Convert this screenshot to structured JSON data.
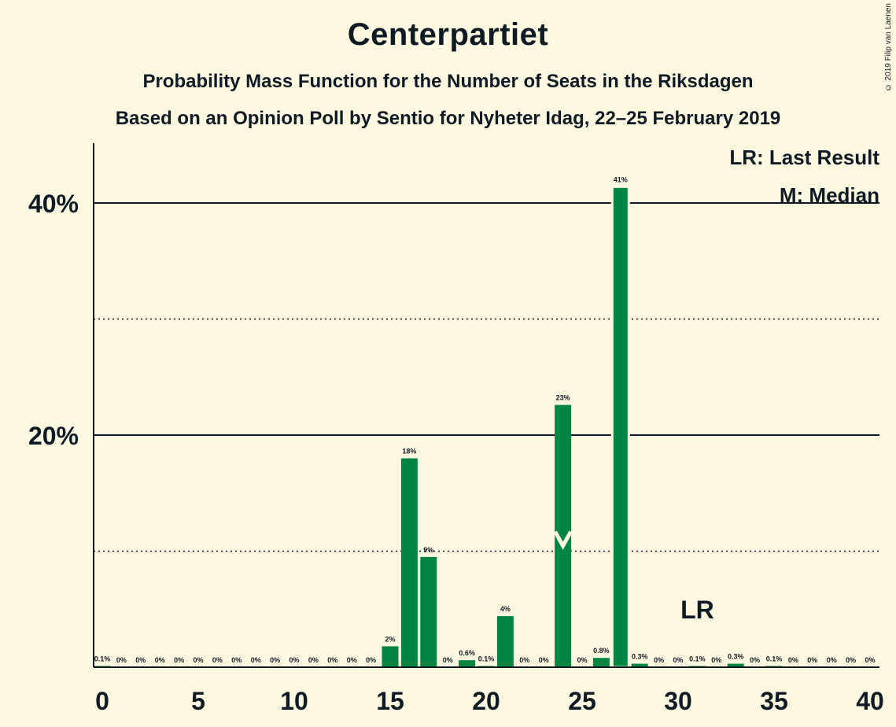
{
  "title": "Centerpartiet",
  "subtitle1": "Probability Mass Function for the Number of Seats in the Riksdagen",
  "subtitle2": "Based on an Opinion Poll by Sentio for Nyheter Idag, 22–25 February 2019",
  "copyright": "© 2019 Filip van Laenen",
  "legend": {
    "last_result": "LR: Last Result",
    "median": "M: Median"
  },
  "colors": {
    "background": "#FFF8E0",
    "bar": "#008542",
    "text": "#0f1b24"
  },
  "chart_data": {
    "type": "bar",
    "x": [
      0,
      1,
      2,
      3,
      4,
      5,
      6,
      7,
      8,
      9,
      10,
      11,
      12,
      13,
      14,
      15,
      16,
      17,
      18,
      19,
      20,
      21,
      22,
      23,
      24,
      25,
      26,
      27,
      28,
      29,
      30,
      31,
      32,
      33,
      34,
      35,
      36,
      37,
      38,
      39,
      40
    ],
    "values": [
      0.1,
      0,
      0,
      0,
      0,
      0,
      0,
      0,
      0,
      0,
      0,
      0,
      0,
      0,
      0,
      1.8,
      18.0,
      9.5,
      0,
      0.6,
      0.1,
      4.4,
      0,
      0,
      22.6,
      0,
      0.8,
      41.4,
      0.3,
      0,
      0,
      0.1,
      0,
      0.3,
      0,
      0.1,
      0,
      0,
      0,
      0,
      0
    ],
    "labels": [
      "0.1%",
      "0%",
      "0%",
      "0%",
      "0%",
      "0%",
      "0%",
      "0%",
      "0%",
      "0%",
      "0%",
      "0%",
      "0%",
      "0%",
      "0%",
      "2%",
      "18%",
      "9%",
      "0%",
      "0.6%",
      "0.1%",
      "4%",
      "0%",
      "0%",
      "23%",
      "0%",
      "0.8%",
      "41%",
      "0.3%",
      "0%",
      "0%",
      "0.1%",
      "0%",
      "0.3%",
      "0%",
      "0.1%",
      "0%",
      "0%",
      "0%",
      "0%",
      "0%"
    ],
    "xticks": [
      0,
      5,
      10,
      15,
      20,
      25,
      30,
      35,
      40
    ],
    "xtick_labels": [
      "0",
      "5",
      "10",
      "15",
      "20",
      "25",
      "30",
      "35",
      "40"
    ],
    "yticks_major": [
      20,
      40
    ],
    "ytick_labels": [
      "20%",
      "40%"
    ],
    "yticks_minor": [
      10,
      30
    ],
    "ylim": [
      0,
      45
    ],
    "xlim": [
      -0.5,
      40.5
    ],
    "median": 24,
    "median_marker": "M",
    "last_result": 31,
    "last_result_marker": "LR",
    "legend_position": "top-right"
  }
}
